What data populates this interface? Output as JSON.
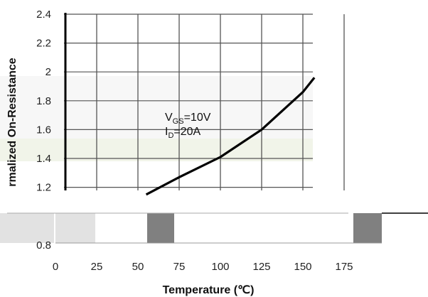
{
  "chart_data": {
    "type": "line",
    "xlabel": "Temperature (℃)",
    "ylabel": "rmalized On-Resistance",
    "x_ticks": [
      0,
      25,
      50,
      75,
      100,
      125,
      150,
      175
    ],
    "y_ticks": [
      0.8,
      1.2,
      1.4,
      1.6,
      1.8,
      2,
      2.2,
      2.4
    ],
    "xlim": [
      0,
      175
    ],
    "ylim": [
      0.8,
      2.4
    ],
    "grid": true,
    "series": [
      {
        "x": [
          55,
          75,
          100,
          125,
          150,
          157
        ],
        "y": [
          1.15,
          1.27,
          1.41,
          1.6,
          1.86,
          1.96
        ]
      }
    ],
    "annotation": {
      "vgs_main": "V",
      "vgs_sub": "GS",
      "vgs_value": "=10V",
      "id_main": "I",
      "id_sub": "D",
      "id_value": "=20A"
    },
    "colors": {
      "line": "#000000",
      "grid": "#555555",
      "gray_block": "#808080",
      "light_block": "#e2e2e2"
    }
  }
}
